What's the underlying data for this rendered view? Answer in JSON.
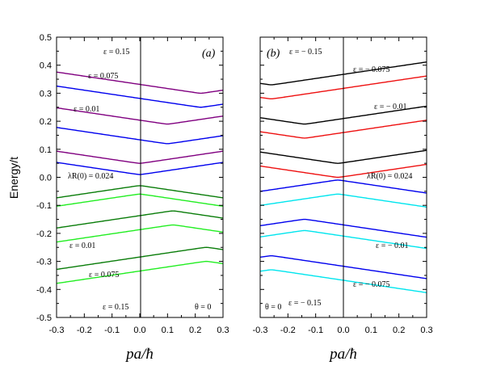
{
  "chart_data": {
    "type": "line",
    "ylabel": "Energy/t",
    "ylim": [
      -0.5,
      0.5
    ],
    "xlim": [
      -0.3,
      0.3
    ],
    "y_ticks": [
      "0.5",
      "0.4",
      "0.3",
      "0.2",
      "0.1",
      "0.0",
      "-0.1",
      "-0.2",
      "-0.3",
      "-0.4",
      "-0.5"
    ],
    "panels": [
      {
        "id": "a",
        "label": "(a)",
        "xlabel": "pa/ħ",
        "x_ticks": [
          "-0.3",
          "-0.2",
          "-0.1",
          "0.0",
          "0.1",
          "0.2",
          "0.3"
        ],
        "annotations": [
          {
            "text": "ε = 0.15"
          },
          {
            "text": "ε = 0.075"
          },
          {
            "text": "ε = 0.01"
          },
          {
            "text": "λR(0) = 0.024"
          },
          {
            "text": "ε = 0.01"
          },
          {
            "text": "ε = 0.075"
          },
          {
            "text": "ε = 0.15"
          },
          {
            "text": "θ = 0"
          }
        ],
        "series": [
          {
            "color": "#0000ee",
            "x0": 0.0,
            "y0": 0.01,
            "a": 0.0216,
            "s": 0.0009,
            "dir": 1
          },
          {
            "color": "#800080",
            "x0": 0.0,
            "y0": 0.05,
            "a": 0.0216,
            "s": 0.0009,
            "dir": 1
          },
          {
            "color": "#0000ee",
            "x0": 0.1,
            "y0": 0.12,
            "a": 0.0216,
            "s": 0.0009,
            "dir": 1
          },
          {
            "color": "#800080",
            "x0": 0.1,
            "y0": 0.19,
            "a": 0.0216,
            "s": 0.0009,
            "dir": 1
          },
          {
            "color": "#0000ee",
            "x0": 0.22,
            "y0": 0.25,
            "a": 0.0216,
            "s": 0.0009,
            "dir": 1
          },
          {
            "color": "#800080",
            "x0": 0.22,
            "y0": 0.3,
            "a": 0.0216,
            "s": 0.0009,
            "dir": 1
          },
          {
            "color": "#0a7d0a",
            "x0": 0.0,
            "y0": -0.03,
            "a": 0.0216,
            "s": 0.0009,
            "dir": -1
          },
          {
            "color": "#22ee22",
            "x0": 0.0,
            "y0": -0.06,
            "a": 0.0216,
            "s": 0.0009,
            "dir": -1
          },
          {
            "color": "#0a7d0a",
            "x0": 0.12,
            "y0": -0.12,
            "a": 0.0216,
            "s": 0.0009,
            "dir": -1
          },
          {
            "color": "#22ee22",
            "x0": 0.12,
            "y0": -0.17,
            "a": 0.0216,
            "s": 0.0009,
            "dir": -1
          },
          {
            "color": "#0a7d0a",
            "x0": 0.24,
            "y0": -0.25,
            "a": 0.0216,
            "s": 0.0009,
            "dir": -1
          },
          {
            "color": "#22ee22",
            "x0": 0.24,
            "y0": -0.3,
            "a": 0.0216,
            "s": 0.0009,
            "dir": -1
          }
        ]
      },
      {
        "id": "b",
        "label": "(b)",
        "xlabel": "pa/ħ",
        "x_ticks": [
          "-0.3",
          "-0.2",
          "-0.1",
          "0.0",
          "0.1",
          "0.2",
          "0.3"
        ],
        "annotations": [
          {
            "text": "ε = − 0.15"
          },
          {
            "text": "ε = − 0.075"
          },
          {
            "text": "ε = − 0.01"
          },
          {
            "text": "λR(0) = 0.024"
          },
          {
            "text": "ε = − 0.01"
          },
          {
            "text": "ε = − 0.075"
          },
          {
            "text": "ε = − 0.15"
          },
          {
            "text": "θ = 0"
          }
        ],
        "series": [
          {
            "color": "#000000",
            "x0": -0.02,
            "y0": 0.05,
            "a": 0.0216,
            "s": 0.0009,
            "dir": 1
          },
          {
            "color": "#ee1111",
            "x0": -0.02,
            "y0": 0.0,
            "a": 0.0216,
            "s": 0.0009,
            "dir": 1
          },
          {
            "color": "#000000",
            "x0": -0.14,
            "y0": 0.19,
            "a": 0.0216,
            "s": 0.0009,
            "dir": 1
          },
          {
            "color": "#ee1111",
            "x0": -0.14,
            "y0": 0.14,
            "a": 0.0216,
            "s": 0.0009,
            "dir": 1
          },
          {
            "color": "#000000",
            "x0": -0.26,
            "y0": 0.33,
            "a": 0.0216,
            "s": 0.0009,
            "dir": 1
          },
          {
            "color": "#ee1111",
            "x0": -0.26,
            "y0": 0.28,
            "a": 0.0216,
            "s": 0.0009,
            "dir": 1
          },
          {
            "color": "#0000ee",
            "x0": -0.02,
            "y0": -0.01,
            "a": 0.0216,
            "s": 0.0009,
            "dir": -1
          },
          {
            "color": "#00e5ee",
            "x0": -0.02,
            "y0": -0.06,
            "a": 0.0216,
            "s": 0.0009,
            "dir": -1
          },
          {
            "color": "#0000ee",
            "x0": -0.14,
            "y0": -0.15,
            "a": 0.0216,
            "s": 0.0009,
            "dir": -1
          },
          {
            "color": "#00e5ee",
            "x0": -0.14,
            "y0": -0.19,
            "a": 0.0216,
            "s": 0.0009,
            "dir": -1
          },
          {
            "color": "#0000ee",
            "x0": -0.26,
            "y0": -0.28,
            "a": 0.0216,
            "s": 0.0009,
            "dir": -1
          },
          {
            "color": "#00e5ee",
            "x0": -0.26,
            "y0": -0.33,
            "a": 0.0216,
            "s": 0.0009,
            "dir": -1
          }
        ]
      }
    ]
  }
}
